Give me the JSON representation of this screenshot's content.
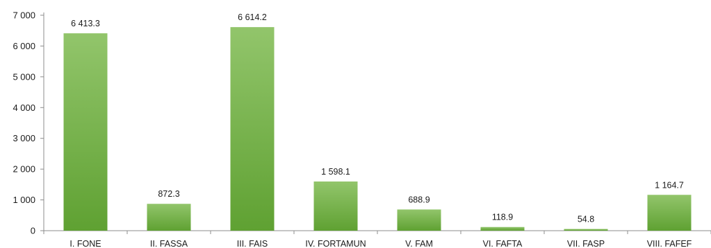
{
  "chart_data": {
    "type": "bar",
    "title": "",
    "xlabel": "",
    "ylabel": "",
    "categories": [
      "I. FONE",
      "II. FASSA",
      "III. FAIS",
      "IV. FORTAMUN",
      "V. FAM",
      "VI. FAFTA",
      "VII. FASP",
      "VIII. FAFEF"
    ],
    "values": [
      6413.3,
      872.3,
      6614.2,
      1598.1,
      688.9,
      118.9,
      54.8,
      1164.7
    ],
    "value_labels": [
      "6 413.3",
      "872.3",
      "6 614.2",
      "1 598.1",
      "688.9",
      "118.9",
      "54.8",
      "1 164.7"
    ],
    "ylim": [
      0,
      7000
    ],
    "yticks": [
      0,
      1000,
      2000,
      3000,
      4000,
      5000,
      6000,
      7000
    ],
    "ytick_labels": [
      "0",
      "1 000",
      "2 000",
      "3 000",
      "4 000",
      "5 000",
      "6 000",
      "7 000"
    ],
    "grid": false,
    "legend": "none",
    "colors": {
      "bar_top": "#92c56b",
      "bar_bottom": "#5fa132",
      "axis": "#8c8c8c"
    }
  }
}
